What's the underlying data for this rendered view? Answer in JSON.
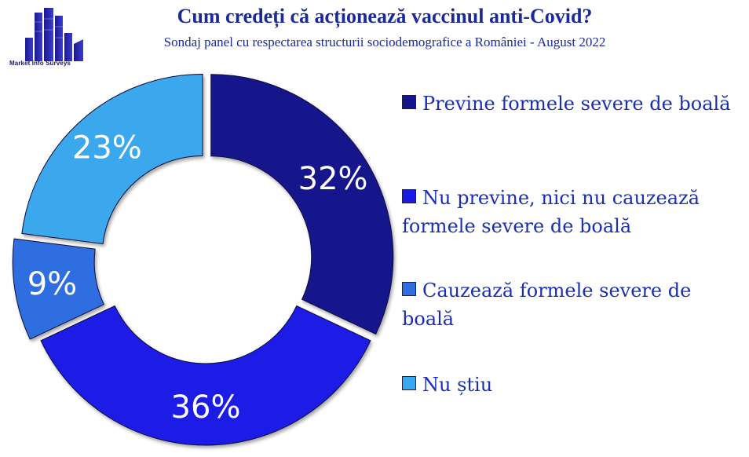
{
  "logo": {
    "text": "Market Info Surveys"
  },
  "header": {
    "title": "Cum credeți că acționează vaccinul anti-Covid?",
    "subtitle": "Sondaj panel cu respectarea structurii sociodemografice a României - August 2022"
  },
  "chart_data": {
    "type": "pie",
    "donut": true,
    "title": "Cum credeți că acționează vaccinul anti-Covid?",
    "subtitle": "Sondaj panel cu respectarea structurii sociodemografice a României - August 2022",
    "legend_position": "right",
    "categories": [
      "Previne formele severe de boală",
      "Nu previne, nici nu cauzează formele severe de boală",
      "Cauzează formele severe de boală",
      "Nu știu"
    ],
    "values": [
      32,
      36,
      9,
      23
    ],
    "labels": [
      "32%",
      "36%",
      "9%",
      "23%"
    ],
    "colors": [
      "#14148c",
      "#1a1ae6",
      "#2f6ee0",
      "#3aa8ee"
    ]
  },
  "legend": {
    "items": [
      {
        "label": "Previne formele severe de boală"
      },
      {
        "label": "Nu previne, nici nu cauzează formele severe de boală"
      },
      {
        "label": "Cauzează formele severe de boală"
      },
      {
        "label": "Nu știu"
      }
    ]
  }
}
